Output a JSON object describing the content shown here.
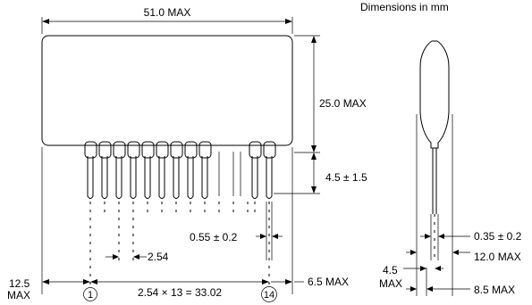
{
  "header": {
    "units_note": "Dimensions in mm"
  },
  "front_view": {
    "overall_width": "51.0 MAX",
    "body_height": "25.0 MAX",
    "lead_length": "4.5 ± 1.5",
    "lead_width": "0.55 ± 0.2",
    "pitch": "2.54",
    "left_offset_value": "12.5",
    "left_offset_unit": "MAX",
    "pin_span": "2.54 × 13 = 33.02",
    "right_offset": "6.5 MAX",
    "first_pin": "1",
    "last_pin": "14"
  },
  "side_view": {
    "lead_thickness": "0.35 ± 0.2",
    "width_at_leads": "12.0 MAX",
    "lead_offset_value": "4.5",
    "lead_offset_unit": "MAX",
    "body_thickness": "8.5 MAX"
  }
}
